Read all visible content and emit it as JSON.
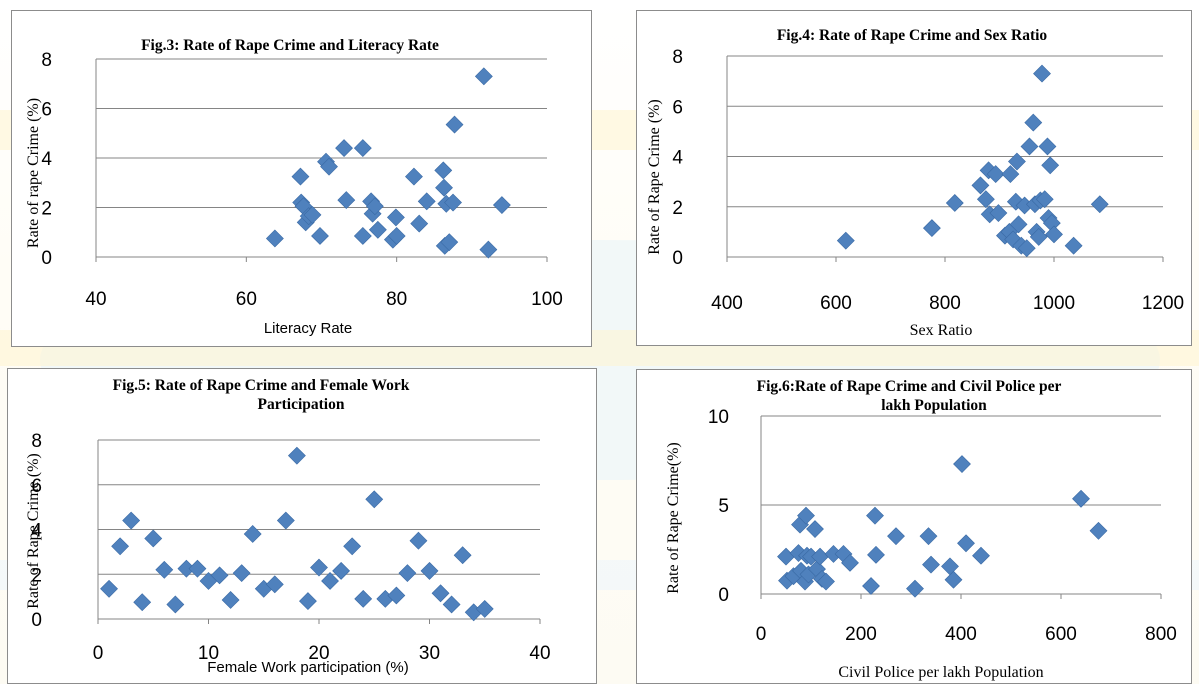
{
  "chart_data": [
    {
      "type": "scatter",
      "title": "Fig.3: Rate of Rape Crime and Literacy Rate",
      "xlabel": "Literacy Rate",
      "ylabel": "Rate of rape Crime (%)",
      "xlim": [
        40,
        100
      ],
      "ylim": [
        0,
        8
      ],
      "xticks": [
        "40",
        "60",
        "80",
        "100"
      ],
      "yticks": [
        "0",
        "2",
        "4",
        "6",
        "8"
      ],
      "grid": "horizontal",
      "marker_color": "#4f81bd",
      "points": [
        {
          "x": 63.8,
          "y": 0.75
        },
        {
          "x": 67.2,
          "y": 3.25
        },
        {
          "x": 67.3,
          "y": 2.2
        },
        {
          "x": 67.6,
          "y": 2.05
        },
        {
          "x": 67.9,
          "y": 1.4
        },
        {
          "x": 68.3,
          "y": 1.65
        },
        {
          "x": 68.8,
          "y": 1.7
        },
        {
          "x": 69.8,
          "y": 0.85
        },
        {
          "x": 70.6,
          "y": 3.85
        },
        {
          "x": 71.0,
          "y": 3.65
        },
        {
          "x": 73.0,
          "y": 4.4
        },
        {
          "x": 73.3,
          "y": 2.3
        },
        {
          "x": 75.5,
          "y": 4.4
        },
        {
          "x": 75.5,
          "y": 0.85
        },
        {
          "x": 76.6,
          "y": 2.25
        },
        {
          "x": 76.8,
          "y": 1.75
        },
        {
          "x": 77.1,
          "y": 2.05
        },
        {
          "x": 77.5,
          "y": 1.1
        },
        {
          "x": 79.5,
          "y": 0.7
        },
        {
          "x": 79.9,
          "y": 1.6
        },
        {
          "x": 80.0,
          "y": 0.85
        },
        {
          "x": 82.3,
          "y": 3.25
        },
        {
          "x": 83.0,
          "y": 1.35
        },
        {
          "x": 84.0,
          "y": 2.25
        },
        {
          "x": 86.2,
          "y": 3.5
        },
        {
          "x": 86.3,
          "y": 2.8
        },
        {
          "x": 86.6,
          "y": 2.15
        },
        {
          "x": 86.4,
          "y": 0.45
        },
        {
          "x": 87.0,
          "y": 0.6
        },
        {
          "x": 87.5,
          "y": 2.2
        },
        {
          "x": 87.7,
          "y": 5.35
        },
        {
          "x": 91.6,
          "y": 7.3
        },
        {
          "x": 92.2,
          "y": 0.3
        },
        {
          "x": 94.0,
          "y": 2.1
        }
      ]
    },
    {
      "type": "scatter",
      "title": "Fig.4: Rate of Rape Crime and Sex Ratio",
      "xlabel": "Sex Ratio",
      "ylabel": "Rate of Rape Crime (%)",
      "xlim": [
        400,
        1200
      ],
      "ylim": [
        0,
        8
      ],
      "xticks": [
        "400",
        "600",
        "800",
        "1000",
        "1200"
      ],
      "yticks": [
        "0",
        "2",
        "4",
        "6",
        "8"
      ],
      "grid": "horizontal",
      "marker_color": "#4f81bd",
      "points": [
        {
          "x": 618,
          "y": 0.65
        },
        {
          "x": 776,
          "y": 1.15
        },
        {
          "x": 818,
          "y": 2.15
        },
        {
          "x": 865,
          "y": 2.85
        },
        {
          "x": 875,
          "y": 2.3
        },
        {
          "x": 880,
          "y": 3.45
        },
        {
          "x": 882,
          "y": 1.7
        },
        {
          "x": 893,
          "y": 3.3
        },
        {
          "x": 898,
          "y": 1.75
        },
        {
          "x": 910,
          "y": 0.85
        },
        {
          "x": 918,
          "y": 1.0
        },
        {
          "x": 920,
          "y": 3.3
        },
        {
          "x": 925,
          "y": 0.7
        },
        {
          "x": 930,
          "y": 2.2
        },
        {
          "x": 932,
          "y": 3.8
        },
        {
          "x": 935,
          "y": 1.3
        },
        {
          "x": 940,
          "y": 0.45
        },
        {
          "x": 946,
          "y": 2.05
        },
        {
          "x": 950,
          "y": 0.35
        },
        {
          "x": 955,
          "y": 4.4
        },
        {
          "x": 962,
          "y": 5.35
        },
        {
          "x": 965,
          "y": 2.1
        },
        {
          "x": 968,
          "y": 1.0
        },
        {
          "x": 972,
          "y": 0.8
        },
        {
          "x": 975,
          "y": 2.25
        },
        {
          "x": 978,
          "y": 7.3
        },
        {
          "x": 983,
          "y": 2.3
        },
        {
          "x": 988,
          "y": 4.4
        },
        {
          "x": 990,
          "y": 1.55
        },
        {
          "x": 993,
          "y": 3.65
        },
        {
          "x": 996,
          "y": 1.35
        },
        {
          "x": 1000,
          "y": 0.9
        },
        {
          "x": 1036,
          "y": 0.45
        },
        {
          "x": 1084,
          "y": 2.1
        }
      ]
    },
    {
      "type": "scatter",
      "title": "Fig.5: Rate of Rape Crime and Female Work Participation",
      "title_lines": [
        "Fig.5: Rate of Rape Crime and Female Work",
        "Participation"
      ],
      "xlabel": "Female Work participation (%)",
      "ylabel": "Rate of Rape Crime (%)",
      "xlim": [
        0,
        40
      ],
      "ylim": [
        0,
        8
      ],
      "xticks": [
        "0",
        "10",
        "20",
        "30",
        "40"
      ],
      "yticks": [
        "0",
        "2",
        "4",
        "6",
        "8"
      ],
      "grid": "horizontal",
      "marker_color": "#4f81bd",
      "points": [
        {
          "x": 1,
          "y": 1.35
        },
        {
          "x": 2,
          "y": 3.25
        },
        {
          "x": 3,
          "y": 4.4
        },
        {
          "x": 4,
          "y": 0.75
        },
        {
          "x": 5,
          "y": 3.6
        },
        {
          "x": 6,
          "y": 2.2
        },
        {
          "x": 7,
          "y": 0.65
        },
        {
          "x": 8,
          "y": 2.25
        },
        {
          "x": 9,
          "y": 2.25
        },
        {
          "x": 10,
          "y": 1.7
        },
        {
          "x": 11,
          "y": 1.95
        },
        {
          "x": 12,
          "y": 0.85
        },
        {
          "x": 13,
          "y": 2.05
        },
        {
          "x": 14,
          "y": 3.8
        },
        {
          "x": 15,
          "y": 1.35
        },
        {
          "x": 16,
          "y": 1.55
        },
        {
          "x": 17,
          "y": 4.4
        },
        {
          "x": 18,
          "y": 7.3
        },
        {
          "x": 19,
          "y": 0.8
        },
        {
          "x": 20,
          "y": 2.3
        },
        {
          "x": 21,
          "y": 1.7
        },
        {
          "x": 22,
          "y": 2.15
        },
        {
          "x": 23,
          "y": 3.25
        },
        {
          "x": 24,
          "y": 0.9
        },
        {
          "x": 25,
          "y": 5.35
        },
        {
          "x": 26,
          "y": 0.9
        },
        {
          "x": 27,
          "y": 1.05
        },
        {
          "x": 28,
          "y": 2.05
        },
        {
          "x": 29,
          "y": 3.5
        },
        {
          "x": 30,
          "y": 2.15
        },
        {
          "x": 31,
          "y": 1.15
        },
        {
          "x": 32,
          "y": 0.65
        },
        {
          "x": 33,
          "y": 2.85
        },
        {
          "x": 34,
          "y": 0.3
        },
        {
          "x": 35,
          "y": 0.45
        }
      ]
    },
    {
      "type": "scatter",
      "title": "Fig.6:Rate of Rape Crime and Civil Police per lakh Population",
      "title_lines": [
        "Fig.6:Rate of Rape Crime and Civil Police per",
        "lakh Population"
      ],
      "xlabel": "Civil Police per lakh Population",
      "ylabel": "Rate of Rape Crime(%)",
      "xlim": [
        0,
        800
      ],
      "ylim": [
        0,
        10
      ],
      "xticks": [
        "0",
        "200",
        "400",
        "600",
        "800"
      ],
      "yticks": [
        "0",
        "5",
        "10"
      ],
      "grid": "horizontal",
      "marker_color": "#4f81bd",
      "points": [
        {
          "x": 50,
          "y": 2.1
        },
        {
          "x": 52,
          "y": 0.75
        },
        {
          "x": 65,
          "y": 1.0
        },
        {
          "x": 75,
          "y": 2.3
        },
        {
          "x": 78,
          "y": 3.9
        },
        {
          "x": 80,
          "y": 1.3
        },
        {
          "x": 88,
          "y": 0.7
        },
        {
          "x": 90,
          "y": 4.4
        },
        {
          "x": 92,
          "y": 2.15
        },
        {
          "x": 95,
          "y": 1.1
        },
        {
          "x": 100,
          "y": 2.1
        },
        {
          "x": 108,
          "y": 3.65
        },
        {
          "x": 112,
          "y": 1.4
        },
        {
          "x": 118,
          "y": 2.1
        },
        {
          "x": 122,
          "y": 0.85
        },
        {
          "x": 130,
          "y": 0.7
        },
        {
          "x": 145,
          "y": 2.25
        },
        {
          "x": 165,
          "y": 2.25
        },
        {
          "x": 178,
          "y": 1.75
        },
        {
          "x": 220,
          "y": 0.45
        },
        {
          "x": 228,
          "y": 4.4
        },
        {
          "x": 230,
          "y": 2.2
        },
        {
          "x": 270,
          "y": 3.25
        },
        {
          "x": 308,
          "y": 0.3
        },
        {
          "x": 335,
          "y": 3.25
        },
        {
          "x": 340,
          "y": 1.65
        },
        {
          "x": 378,
          "y": 1.55
        },
        {
          "x": 385,
          "y": 0.8
        },
        {
          "x": 402,
          "y": 7.3
        },
        {
          "x": 410,
          "y": 2.85
        },
        {
          "x": 440,
          "y": 2.15
        },
        {
          "x": 640,
          "y": 5.35
        },
        {
          "x": 675,
          "y": 3.55
        }
      ]
    }
  ]
}
